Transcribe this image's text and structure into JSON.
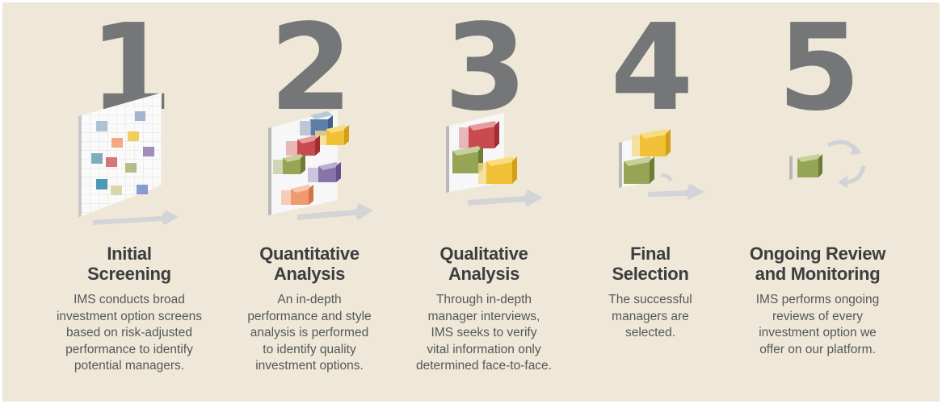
{
  "steps": [
    {
      "number": "1",
      "title_lines": [
        "Initial",
        "Screening"
      ],
      "desc_lines": [
        "IMS conducts broad",
        "investment option screens",
        "based on risk-adjusted",
        "performance to identify",
        "potential managers."
      ],
      "icon": "screening-grid-icon"
    },
    {
      "number": "2",
      "title_lines": [
        "Quantitative",
        "Analysis"
      ],
      "desc_lines": [
        "An in-depth",
        "performance and style",
        "analysis is performed",
        "to identify quality",
        "investment options."
      ],
      "icon": "quantitative-blocks-icon"
    },
    {
      "number": "3",
      "title_lines": [
        "Qualitative",
        "Analysis"
      ],
      "desc_lines": [
        "Through in-depth",
        "manager interviews,",
        "IMS seeks to verify",
        "vital information only",
        "determined face-to-face."
      ],
      "icon": "qualitative-blocks-icon"
    },
    {
      "number": "4",
      "title_lines": [
        "Final",
        "Selection"
      ],
      "desc_lines": [
        "The successful",
        "managers are",
        "selected."
      ],
      "icon": "selection-blocks-icon"
    },
    {
      "number": "5",
      "title_lines": [
        "Ongoing Review",
        "and Monitoring"
      ],
      "desc_lines": [
        "IMS performs ongoing",
        "reviews of every",
        "investment option we",
        "offer on our platform."
      ],
      "icon": "monitoring-cycle-icon"
    }
  ],
  "colors": {
    "background": "#efe8d8",
    "number": "#747678",
    "title": "#3c3d3f",
    "text": "#55575a",
    "cube_red": "#c94a4f",
    "cube_yellow": "#f0c036",
    "cube_green": "#96a456",
    "cube_orange": "#f09a6e",
    "cube_purple": "#8a73ab",
    "cube_blue": "#8ea5c6",
    "cube_teal": "#5f9aa8"
  }
}
